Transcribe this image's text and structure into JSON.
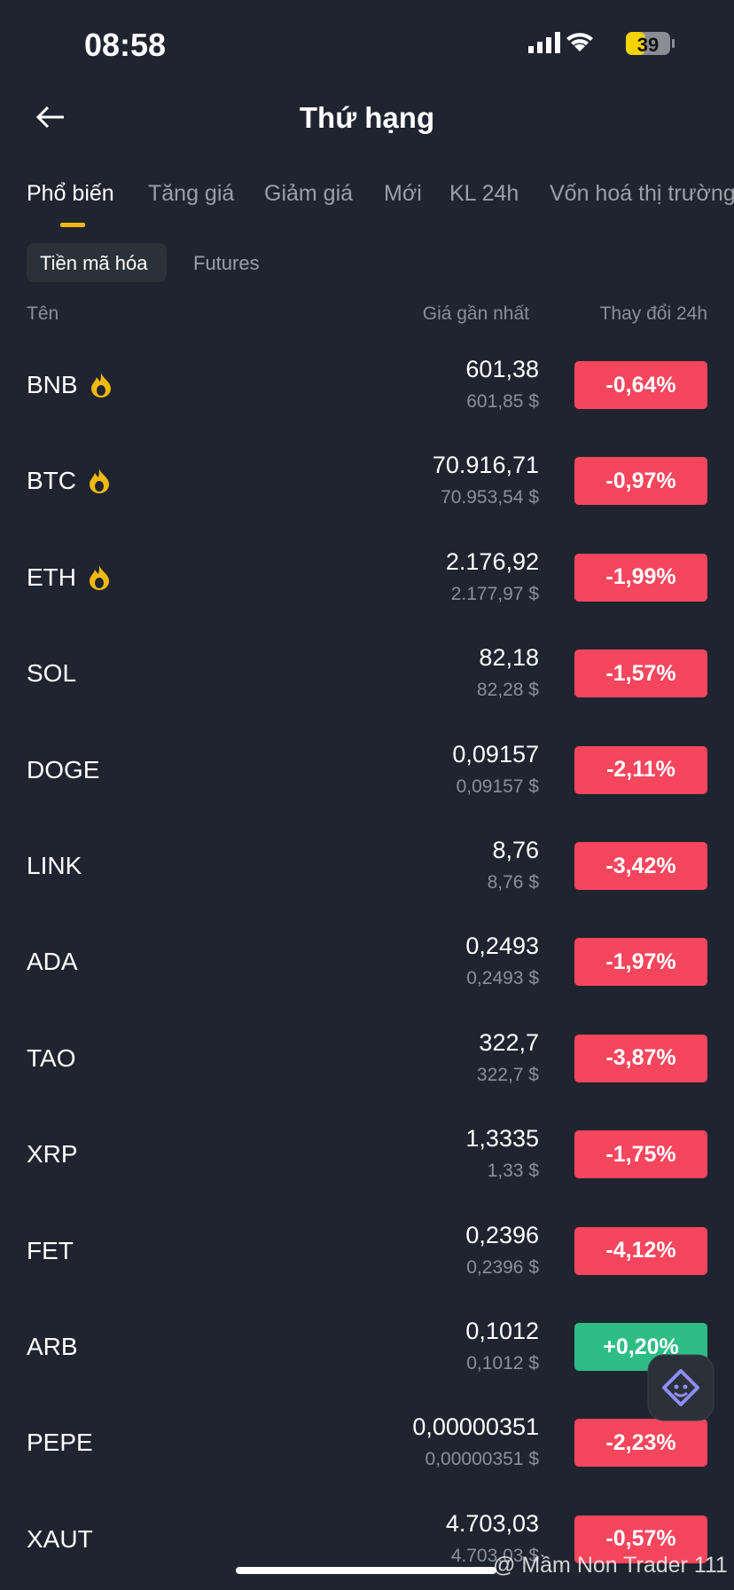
{
  "status_bar": {
    "time": "08:58",
    "battery": "39"
  },
  "header": {
    "title": "Thứ hạng"
  },
  "tabs": [
    "Phổ biến",
    "Tăng giá",
    "Giảm giá",
    "Mới",
    "KL 24h",
    "Vốn hoá thị trường"
  ],
  "subtabs": [
    "Tiền mã hóa",
    "Futures"
  ],
  "columns": {
    "name": "Tên",
    "price": "Giá gần nhất",
    "change": "Thay đổi 24h"
  },
  "rows": [
    {
      "symbol": "BNB",
      "hot": true,
      "price": "601,38",
      "usd": "601,85 $",
      "change": "-0,64%"
    },
    {
      "symbol": "BTC",
      "hot": true,
      "price": "70.916,71",
      "usd": "70.953,54 $",
      "change": "-0,97%"
    },
    {
      "symbol": "ETH",
      "hot": true,
      "price": "2.176,92",
      "usd": "2.177,97 $",
      "change": "-1,99%"
    },
    {
      "symbol": "SOL",
      "hot": false,
      "price": "82,18",
      "usd": "82,28 $",
      "change": "-1,57%"
    },
    {
      "symbol": "DOGE",
      "hot": false,
      "price": "0,09157",
      "usd": "0,09157 $",
      "change": "-2,11%"
    },
    {
      "symbol": "LINK",
      "hot": false,
      "price": "8,76",
      "usd": "8,76 $",
      "change": "-3,42%"
    },
    {
      "symbol": "ADA",
      "hot": false,
      "price": "0,2493",
      "usd": "0,2493 $",
      "change": "-1,97%"
    },
    {
      "symbol": "TAO",
      "hot": false,
      "price": "322,7",
      "usd": "322,7 $",
      "change": "-3,87%"
    },
    {
      "symbol": "XRP",
      "hot": false,
      "price": "1,3335",
      "usd": "1,33 $",
      "change": "-1,75%"
    },
    {
      "symbol": "FET",
      "hot": false,
      "price": "0,2396",
      "usd": "0,2396 $",
      "change": "-4,12%"
    },
    {
      "symbol": "ARB",
      "hot": false,
      "price": "0,1012",
      "usd": "0,1012 $",
      "change": "+0,20%"
    },
    {
      "symbol": "PEPE",
      "hot": false,
      "price": "0,00000351",
      "usd": "0,00000351 $",
      "change": "-2,23%"
    },
    {
      "symbol": "XAUT",
      "hot": false,
      "price": "4.703,03",
      "usd": "4.703,03 $",
      "change": "-0,57%"
    }
  ],
  "watermark": "@ Mầm Non Trader 111"
}
